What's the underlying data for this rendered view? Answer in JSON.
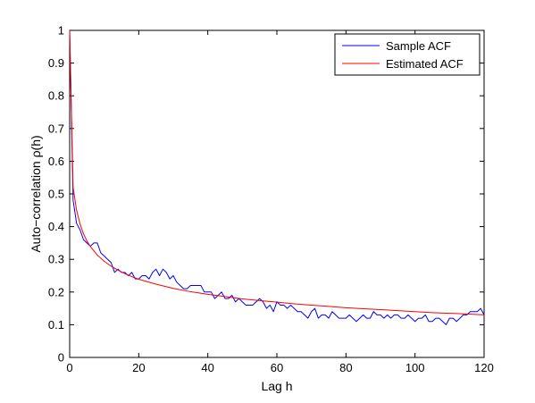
{
  "chart_data": {
    "type": "line",
    "title": "",
    "xlabel": "Lag h",
    "ylabel": "Auto−correlation ρ(h)",
    "xlim": [
      0,
      120
    ],
    "ylim": [
      0,
      1
    ],
    "xticks": [
      "0",
      "20",
      "40",
      "60",
      "80",
      "100",
      "120"
    ],
    "yticks": [
      "0",
      "0.1",
      "0.2",
      "0.3",
      "0.4",
      "0.5",
      "0.6",
      "0.7",
      "0.8",
      "0.9",
      "1"
    ],
    "grid": false,
    "legend_position": "top-right",
    "series": [
      {
        "name": "Sample ACF",
        "color": "#0000ff",
        "x": [
          0,
          1,
          2,
          3,
          4,
          5,
          6,
          7,
          8,
          9,
          10,
          11,
          12,
          13,
          14,
          15,
          16,
          17,
          18,
          19,
          20,
          21,
          22,
          23,
          24,
          25,
          26,
          27,
          28,
          29,
          30,
          31,
          32,
          33,
          34,
          35,
          36,
          37,
          38,
          39,
          40,
          41,
          42,
          43,
          44,
          45,
          46,
          47,
          48,
          49,
          50,
          51,
          52,
          53,
          54,
          55,
          56,
          57,
          58,
          59,
          60,
          61,
          62,
          63,
          64,
          65,
          66,
          67,
          68,
          69,
          70,
          71,
          72,
          73,
          74,
          75,
          76,
          77,
          78,
          79,
          80,
          81,
          82,
          83,
          84,
          85,
          86,
          87,
          88,
          89,
          90,
          91,
          92,
          93,
          94,
          95,
          96,
          97,
          98,
          99,
          100,
          101,
          102,
          103,
          104,
          105,
          106,
          107,
          108,
          109,
          110,
          111,
          112,
          113,
          114,
          115,
          116,
          117,
          118,
          119,
          120
        ],
        "y": [
          1.0,
          0.48,
          0.41,
          0.39,
          0.36,
          0.35,
          0.34,
          0.35,
          0.35,
          0.32,
          0.31,
          0.3,
          0.29,
          0.26,
          0.27,
          0.26,
          0.26,
          0.25,
          0.26,
          0.24,
          0.24,
          0.25,
          0.25,
          0.24,
          0.26,
          0.27,
          0.25,
          0.27,
          0.26,
          0.24,
          0.25,
          0.23,
          0.22,
          0.21,
          0.21,
          0.22,
          0.22,
          0.22,
          0.22,
          0.2,
          0.2,
          0.2,
          0.18,
          0.19,
          0.2,
          0.18,
          0.18,
          0.19,
          0.17,
          0.18,
          0.17,
          0.16,
          0.16,
          0.16,
          0.17,
          0.18,
          0.17,
          0.15,
          0.16,
          0.14,
          0.17,
          0.16,
          0.16,
          0.15,
          0.16,
          0.15,
          0.14,
          0.14,
          0.13,
          0.12,
          0.14,
          0.15,
          0.12,
          0.13,
          0.13,
          0.12,
          0.14,
          0.13,
          0.12,
          0.12,
          0.12,
          0.13,
          0.12,
          0.11,
          0.12,
          0.13,
          0.12,
          0.12,
          0.14,
          0.13,
          0.13,
          0.12,
          0.13,
          0.12,
          0.13,
          0.13,
          0.12,
          0.12,
          0.13,
          0.12,
          0.11,
          0.12,
          0.12,
          0.13,
          0.11,
          0.11,
          0.12,
          0.12,
          0.11,
          0.1,
          0.12,
          0.12,
          0.11,
          0.12,
          0.13,
          0.13,
          0.14,
          0.14,
          0.14,
          0.15,
          0.13
        ]
      },
      {
        "name": "Estimated ACF",
        "color": "#ff0000",
        "x": [
          0,
          1,
          2,
          3,
          4,
          5,
          6,
          8,
          10,
          12,
          14,
          16,
          18,
          20,
          25,
          30,
          35,
          40,
          45,
          50,
          55,
          60,
          65,
          70,
          75,
          80,
          85,
          90,
          95,
          100,
          105,
          110,
          115,
          120
        ],
        "y": [
          1.0,
          0.52,
          0.45,
          0.408,
          0.378,
          0.356,
          0.339,
          0.313,
          0.294,
          0.279,
          0.267,
          0.256,
          0.247,
          0.239,
          0.224,
          0.211,
          0.201,
          0.193,
          0.186,
          0.179,
          0.174,
          0.169,
          0.164,
          0.16,
          0.156,
          0.152,
          0.149,
          0.146,
          0.143,
          0.14,
          0.137,
          0.135,
          0.133,
          0.13
        ]
      }
    ]
  }
}
